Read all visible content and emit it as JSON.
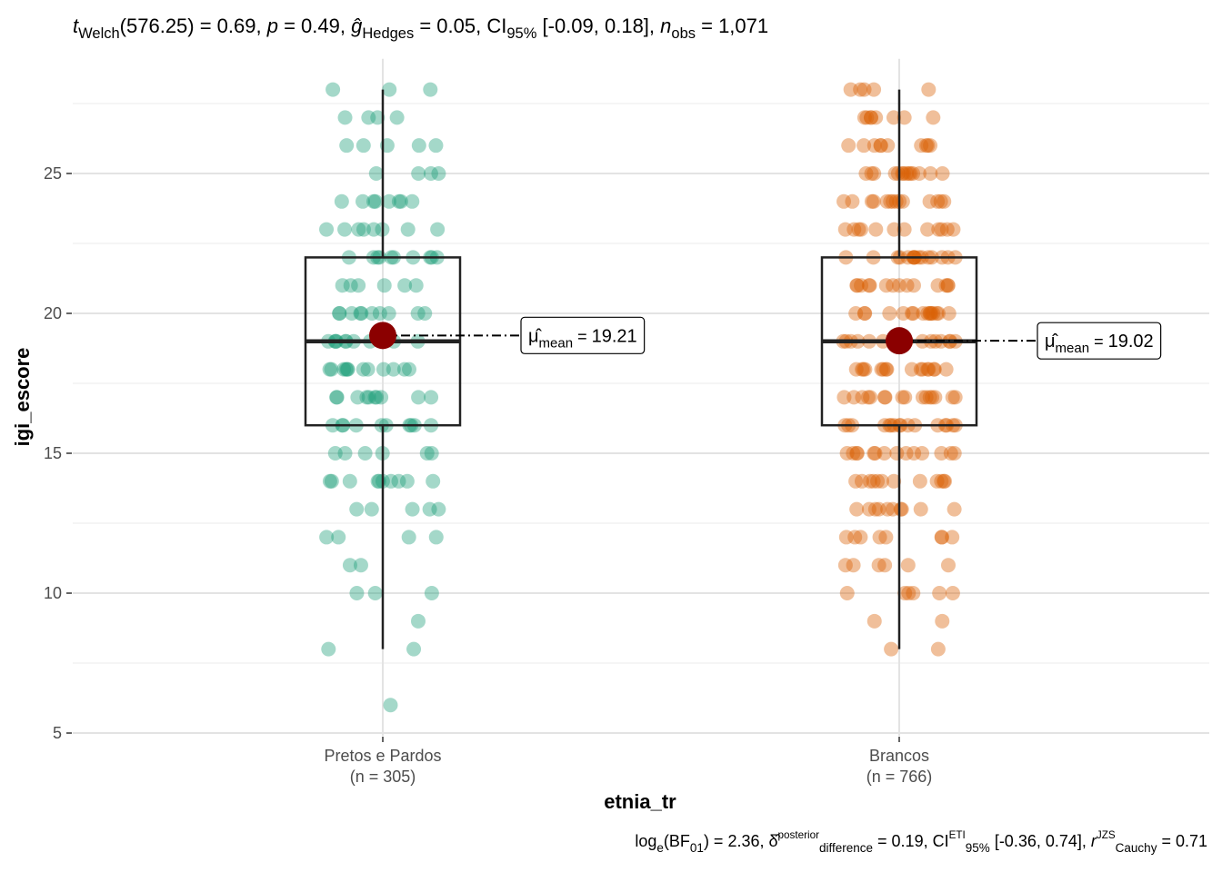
{
  "chart_data": {
    "type": "box-violin-points",
    "subtitle_parts": [
      {
        "text": "t",
        "style": "italic"
      },
      {
        "text": "Welch",
        "style": "sub"
      },
      {
        "text": "(576.25) = 0.69, ",
        "style": "normal"
      },
      {
        "text": "p",
        "style": "italic"
      },
      {
        "text": " = 0.49, ",
        "style": "normal"
      },
      {
        "text": "ĝ",
        "style": "italic"
      },
      {
        "text": "Hedges",
        "style": "sub"
      },
      {
        "text": " = 0.05, CI",
        "style": "normal"
      },
      {
        "text": "95%",
        "style": "sub"
      },
      {
        "text": " [-0.09, 0.18], ",
        "style": "normal"
      },
      {
        "text": "n",
        "style": "italic"
      },
      {
        "text": "obs",
        "style": "sub"
      },
      {
        "text": " = 1,071",
        "style": "normal"
      }
    ],
    "caption_parts": [
      {
        "text": "log",
        "style": "normal"
      },
      {
        "text": "e",
        "style": "sub"
      },
      {
        "text": "(BF",
        "style": "normal"
      },
      {
        "text": "01",
        "style": "sub"
      },
      {
        "text": ") = 2.36, δ̂",
        "style": "normal"
      },
      {
        "text": "posterior",
        "style": "sup"
      },
      {
        "text": "difference",
        "style": "sub"
      },
      {
        "text": " = 0.19, CI",
        "style": "normal"
      },
      {
        "text": "ETI",
        "style": "sup"
      },
      {
        "text": "95%",
        "style": "sub"
      },
      {
        "text": " [-0.36, 0.74], ",
        "style": "normal"
      },
      {
        "text": "r",
        "style": "italic"
      },
      {
        "text": "JZS",
        "style": "sup"
      },
      {
        "text": "Cauchy",
        "style": "sub"
      },
      {
        "text": " = 0.71",
        "style": "normal"
      }
    ],
    "x_label": "etnia_tr",
    "y_label": "igi_escore",
    "categories": [
      "Pretos e Pardos",
      "Brancos"
    ],
    "category_counts": [
      "(n = 305)",
      "(n = 766)"
    ],
    "colors": [
      "#1b9e77",
      "#d95f02"
    ],
    "boxes": [
      {
        "whisker_low": 8,
        "q1": 16,
        "median": 19,
        "q3": 22,
        "whisker_high": 28
      },
      {
        "whisker_low": 8,
        "q1": 16,
        "median": 19,
        "q3": 22,
        "whisker_high": 28
      }
    ],
    "means": [
      19.21,
      19.02
    ],
    "mean_color": "#8b0000",
    "mean_symbol": "μ̂",
    "mean_subscript": "mean",
    "mean_equals": " = ",
    "points": [
      [
        28,
        28,
        28,
        27,
        27,
        27,
        27,
        26,
        26,
        26,
        26,
        26,
        25,
        25,
        25,
        25,
        24,
        24,
        24,
        24,
        24,
        24,
        24,
        24,
        23,
        23,
        23,
        23,
        23,
        23,
        23,
        23,
        22,
        22,
        22,
        22,
        22,
        22,
        22,
        22,
        22,
        22,
        21,
        21,
        21,
        21,
        21,
        21,
        20,
        20,
        20,
        20,
        20,
        20,
        20,
        20,
        20,
        20,
        19,
        19,
        19,
        19,
        19,
        19,
        19,
        19,
        19,
        19,
        18,
        18,
        18,
        18,
        18,
        18,
        18,
        18,
        18,
        18,
        18,
        18,
        17,
        17,
        17,
        17,
        17,
        17,
        17,
        17,
        17,
        17,
        16,
        16,
        16,
        16,
        16,
        16,
        16,
        16,
        16,
        16,
        15,
        15,
        15,
        15,
        15,
        15,
        14,
        14,
        14,
        14,
        14,
        14,
        14,
        14,
        14,
        14,
        13,
        13,
        13,
        13,
        13,
        12,
        12,
        12,
        12,
        11,
        11,
        10,
        10,
        10,
        9,
        8,
        8,
        6
      ],
      [
        28,
        28,
        28,
        28,
        28,
        27,
        27,
        27,
        27,
        27,
        27,
        27,
        27,
        26,
        26,
        26,
        26,
        26,
        26,
        26,
        26,
        26,
        26,
        25,
        25,
        25,
        25,
        25,
        25,
        25,
        25,
        25,
        25,
        25,
        25,
        25,
        25,
        24,
        24,
        24,
        24,
        24,
        24,
        24,
        24,
        24,
        24,
        24,
        24,
        24,
        24,
        23,
        23,
        23,
        23,
        23,
        23,
        23,
        23,
        23,
        23,
        23,
        23,
        22,
        22,
        22,
        22,
        22,
        22,
        22,
        22,
        22,
        22,
        22,
        22,
        22,
        22,
        22,
        22,
        21,
        21,
        21,
        21,
        21,
        21,
        21,
        21,
        21,
        21,
        21,
        21,
        21,
        21,
        20,
        20,
        20,
        20,
        20,
        20,
        20,
        20,
        20,
        20,
        20,
        20,
        20,
        20,
        20,
        20,
        19,
        19,
        19,
        19,
        19,
        19,
        19,
        19,
        19,
        19,
        19,
        19,
        19,
        19,
        19,
        19,
        18,
        18,
        18,
        18,
        18,
        18,
        18,
        18,
        18,
        18,
        18,
        18,
        18,
        18,
        18,
        18,
        17,
        17,
        17,
        17,
        17,
        17,
        17,
        17,
        17,
        17,
        17,
        17,
        17,
        17,
        17,
        17,
        16,
        16,
        16,
        16,
        16,
        16,
        16,
        16,
        16,
        16,
        16,
        16,
        16,
        16,
        16,
        16,
        15,
        15,
        15,
        15,
        15,
        15,
        15,
        15,
        15,
        15,
        15,
        15,
        15,
        15,
        14,
        14,
        14,
        14,
        14,
        14,
        14,
        14,
        14,
        14,
        14,
        14,
        13,
        13,
        13,
        13,
        13,
        13,
        13,
        13,
        13,
        13,
        12,
        12,
        12,
        12,
        12,
        12,
        12,
        12,
        11,
        11,
        11,
        11,
        11,
        11,
        10,
        10,
        10,
        10,
        10,
        10,
        9,
        9,
        8,
        8
      ]
    ],
    "ylim": [
      4.9,
      29.1
    ],
    "yticks": [
      5,
      10,
      15,
      20,
      25
    ],
    "minor_yticks": [
      7.5,
      12.5,
      17.5,
      22.5,
      27.5
    ],
    "grid": true
  }
}
